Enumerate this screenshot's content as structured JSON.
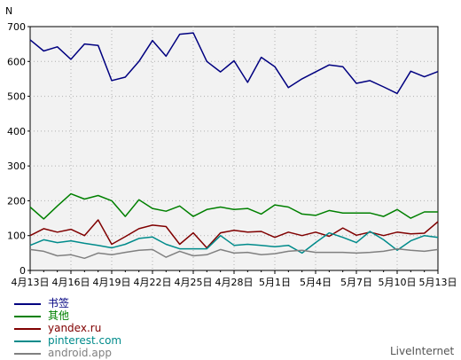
{
  "chart_data": {
    "type": "line",
    "ylabel": "N",
    "ylim": [
      0,
      700
    ],
    "yticks": [
      0,
      100,
      200,
      300,
      400,
      500,
      600,
      700
    ],
    "grid": true,
    "x_tick_labels": [
      "4月13日",
      "4月16日",
      "4月19日",
      "4月22日",
      "4月25日",
      "4月28日",
      "5月1日",
      "5月4日",
      "5月7日",
      "5月10日",
      "5月13日"
    ],
    "x_tick_step_days": 3,
    "legend_position": "bottom-left",
    "series": [
      {
        "name": "书签",
        "color": "#000080",
        "values": [
          662,
          630,
          642,
          606,
          650,
          646,
          545,
          555,
          600,
          660,
          615,
          678,
          682,
          600,
          570,
          602,
          540,
          612,
          585,
          525,
          550,
          570,
          590,
          585,
          537,
          545,
          527,
          508,
          572,
          556,
          571
        ]
      },
      {
        "name": "其他",
        "color": "#008000",
        "values": [
          182,
          148,
          185,
          220,
          205,
          215,
          200,
          155,
          203,
          178,
          170,
          185,
          155,
          175,
          182,
          175,
          178,
          162,
          188,
          182,
          162,
          158,
          172,
          165,
          165,
          165,
          155,
          175,
          150,
          168,
          168
        ]
      },
      {
        "name": "yandex.ru",
        "color": "#800000",
        "values": [
          100,
          120,
          110,
          118,
          100,
          145,
          75,
          97,
          120,
          130,
          126,
          75,
          108,
          65,
          108,
          115,
          110,
          112,
          95,
          110,
          100,
          110,
          98,
          122,
          101,
          110,
          100,
          110,
          105,
          107,
          140
        ]
      },
      {
        "name": "pinterest.com",
        "color": "#008b8b",
        "values": [
          72,
          88,
          80,
          85,
          78,
          72,
          65,
          75,
          92,
          96,
          75,
          62,
          62,
          62,
          100,
          72,
          75,
          72,
          68,
          72,
          50,
          80,
          108,
          95,
          80,
          112,
          88,
          58,
          85,
          100,
          95
        ]
      },
      {
        "name": "android.app",
        "color": "#808080",
        "values": [
          60,
          55,
          42,
          45,
          35,
          50,
          45,
          52,
          58,
          60,
          38,
          55,
          42,
          45,
          60,
          50,
          52,
          45,
          48,
          55,
          58,
          52,
          52,
          52,
          50,
          52,
          55,
          62,
          58,
          55,
          60
        ]
      }
    ]
  },
  "brand": "LiveInternet"
}
